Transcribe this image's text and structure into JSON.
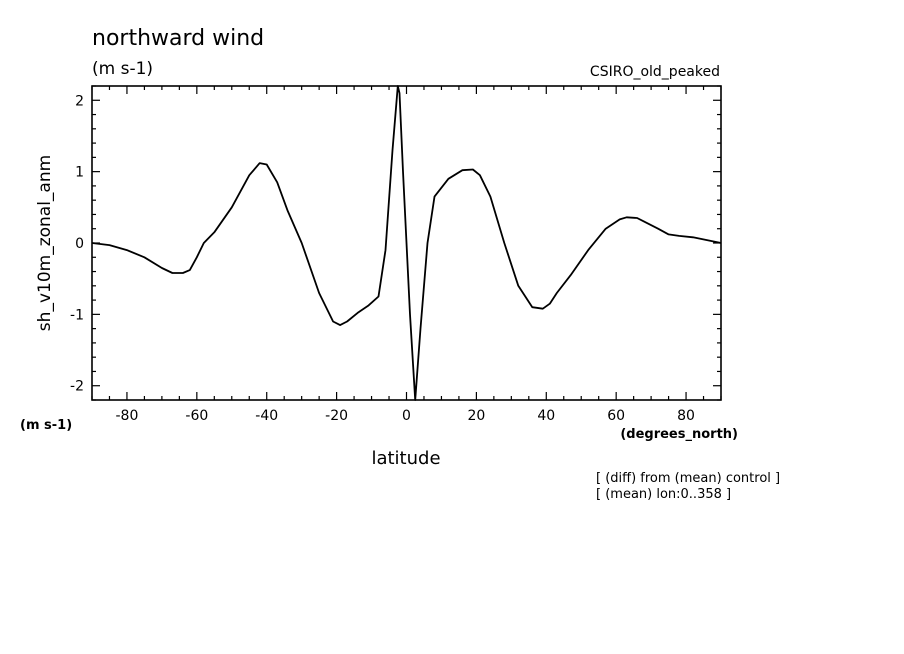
{
  "chart_data": {
    "type": "line",
    "title": "northward wind",
    "subtitle": "(m s-1)",
    "model": "CSIRO_old_peaked",
    "ylabel": "sh_v10m_zonal_anm",
    "yunits": "(m s-1)",
    "xlabel": "latitude",
    "xunits": "(degrees_north)",
    "notes": [
      "[ (diff) from (mean) control ]",
      "[ (mean) lon:0..358 ]"
    ],
    "xlim": [
      -90,
      90
    ],
    "ylim": [
      -2.2,
      2.2
    ],
    "xticks": [
      -80,
      -60,
      -40,
      -20,
      0,
      20,
      40,
      60,
      80
    ],
    "xtick_labels": [
      "-80",
      "-60",
      "-40",
      "-20",
      "0",
      "20",
      "40",
      "60",
      "80"
    ],
    "yticks": [
      -2,
      -1,
      0,
      1,
      2
    ],
    "ytick_labels": [
      "-2",
      "-1",
      "0",
      "1",
      "2"
    ],
    "grid": false,
    "line_color": "#000000",
    "series": [
      {
        "x": [
          -90,
          -85,
          -80,
          -75,
          -70,
          -67,
          -64,
          -62,
          -60,
          -58,
          -55,
          -50,
          -45,
          -42,
          -40,
          -37,
          -34,
          -30,
          -25,
          -21,
          -19,
          -17,
          -14,
          -11,
          -8,
          -6,
          -4,
          -2.5,
          -2,
          -1,
          0,
          1,
          2.5,
          4,
          6,
          8,
          12,
          16,
          19,
          21,
          24,
          28,
          32,
          36,
          39,
          41,
          43,
          47,
          52,
          57,
          61,
          63,
          66,
          68,
          72,
          75,
          78,
          82,
          86,
          90
        ],
        "y": [
          0,
          -0.03,
          -0.1,
          -0.2,
          -0.35,
          -0.42,
          -0.42,
          -0.38,
          -0.2,
          0,
          0.15,
          0.5,
          0.95,
          1.12,
          1.1,
          0.85,
          0.45,
          0.0,
          -0.7,
          -1.1,
          -1.15,
          -1.1,
          -0.98,
          -0.88,
          -0.75,
          -0.1,
          1.3,
          2.2,
          2.1,
          1.0,
          0.0,
          -1.0,
          -2.2,
          -1.2,
          0.0,
          0.65,
          0.9,
          1.02,
          1.03,
          0.95,
          0.65,
          0.0,
          -0.6,
          -0.9,
          -0.92,
          -0.85,
          -0.7,
          -0.45,
          -0.1,
          0.2,
          0.33,
          0.36,
          0.35,
          0.3,
          0.2,
          0.12,
          0.1,
          0.08,
          0.04,
          0.0
        ]
      }
    ]
  }
}
